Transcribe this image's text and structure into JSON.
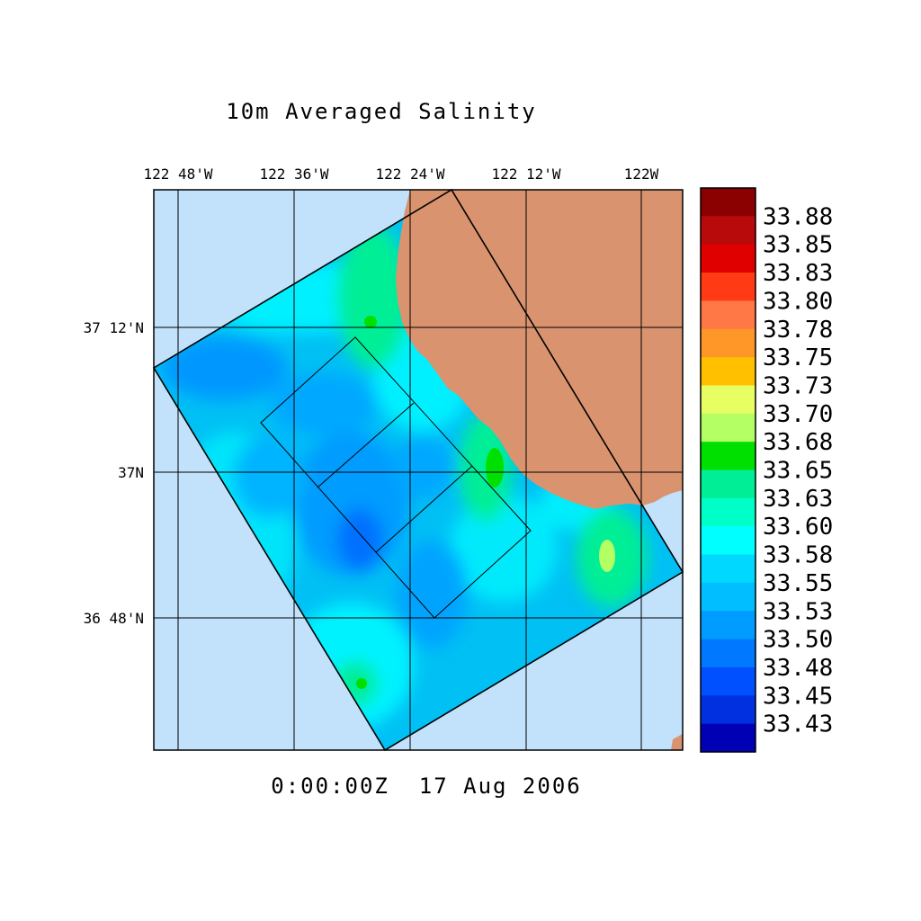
{
  "title": "10m Averaged Salinity",
  "timestamp": "0:00:00Z  17 Aug 2006",
  "lon_labels": [
    "122 48'W",
    "122 36'W",
    "122 24'W",
    "122 12'W",
    "122W"
  ],
  "lat_labels": [
    "37 12'N",
    "37N",
    "36 48'N"
  ],
  "colorbar": {
    "labels": [
      "33.88",
      "33.85",
      "33.83",
      "33.80",
      "33.78",
      "33.75",
      "33.73",
      "33.70",
      "33.68",
      "33.65",
      "33.63",
      "33.60",
      "33.58",
      "33.55",
      "33.53",
      "33.50",
      "33.48",
      "33.45",
      "33.43"
    ],
    "colors": [
      "#8b0000",
      "#b80a0a",
      "#e00000",
      "#ff3a14",
      "#ff7846",
      "#ff9628",
      "#ffc000",
      "#e8ff64",
      "#b4ff64",
      "#00e000",
      "#00ee96",
      "#00ffc8",
      "#00ffff",
      "#00d8ff",
      "#00beff",
      "#009cff",
      "#0078ff",
      "#0050ff",
      "#0030e0",
      "#0000b4"
    ]
  },
  "colors": {
    "land": "#d9936f",
    "ocean_background": "#c2e1fb"
  }
}
